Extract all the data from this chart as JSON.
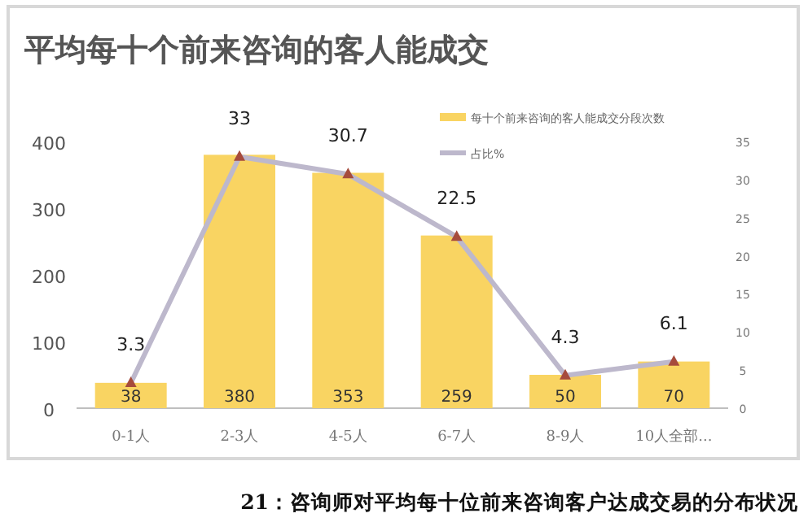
{
  "chart_data": {
    "type": "bar",
    "title": "平均每十个前来咨询的客人能成交",
    "categories": [
      "0-1人",
      "2-3人",
      "4-5人",
      "6-7人",
      "8-9人",
      "10人全部..."
    ],
    "series": [
      {
        "name": "每十个前来咨询的客人能成交分段次数",
        "color": "#f9d462",
        "values": [
          38,
          380,
          353,
          259,
          50,
          70
        ]
      },
      {
        "name": "占比%",
        "type": "line",
        "axis": "y2",
        "color": "#bdb8cc",
        "marker": "triangle",
        "values": [
          3.3,
          33,
          30.7,
          22.5,
          4.3,
          6.1
        ]
      }
    ],
    "ylim": [
      0,
      400
    ],
    "yticks": [
      0,
      100,
      200,
      300,
      400
    ],
    "y2lim": [
      0,
      35
    ],
    "y2ticks": [
      0,
      5,
      10,
      15,
      20,
      25,
      30,
      35
    ],
    "data_labels": true,
    "legend": "top right",
    "grid": false,
    "annotations": [
      "21：咨询师对平均每十位前来咨询客户达成交易的分布状况"
    ]
  }
}
